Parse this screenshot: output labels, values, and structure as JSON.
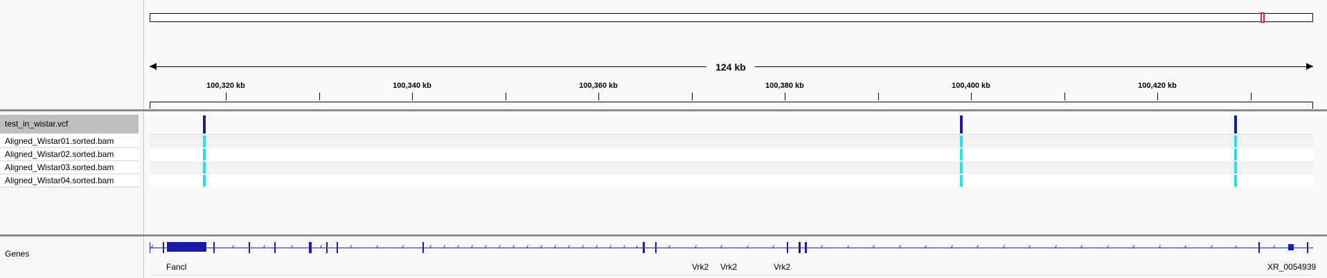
{
  "ruler": {
    "span_label": "124 kb",
    "ticks": [
      "100,320 kb",
      "100,340 kb",
      "100,360 kb",
      "100,380 kb",
      "100,400 kb",
      "100,420 kb"
    ]
  },
  "tracks": {
    "vcf_label": "test_in_wistar.vcf",
    "samples": [
      "Aligned_Wistar01.sorted.bam",
      "Aligned_Wistar02.sorted.bam",
      "Aligned_Wistar03.sorted.bam",
      "Aligned_Wistar04.sorted.bam"
    ]
  },
  "genes": {
    "label": "Genes",
    "names": [
      "Fancl",
      "Vrk2",
      "Vrk2",
      "Vrk2",
      "XR_0054939"
    ]
  },
  "colors": {
    "variant": "#1a1aa8",
    "genotype": "#22e0f0",
    "region_marker": "#e02020",
    "gene": "#1a1aa8"
  }
}
